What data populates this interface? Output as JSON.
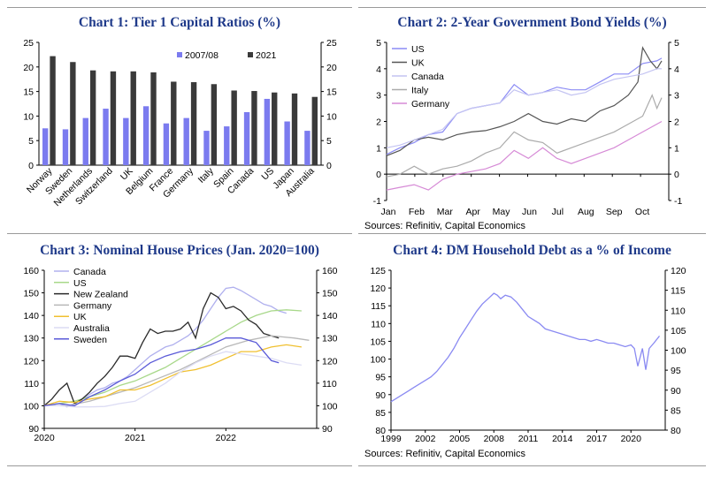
{
  "chart_data": [
    {
      "type": "bar",
      "title": "Chart 1: Tier 1 Capital Ratios (%)",
      "categories": [
        "Norway",
        "Sweden",
        "Netherlands",
        "Switzerland",
        "UK",
        "Belgium",
        "France",
        "Germany",
        "Italy",
        "Spain",
        "Canada",
        "US",
        "Japan",
        "Australia"
      ],
      "series": [
        {
          "name": "2007/08",
          "color": "#7b7bef",
          "values": [
            7.5,
            7.3,
            9.6,
            11.5,
            9.6,
            12.0,
            8.5,
            9.6,
            7.0,
            7.9,
            10.8,
            13.5,
            8.9,
            7.0
          ]
        },
        {
          "name": "2021",
          "color": "#3a3a3a",
          "values": [
            22.2,
            21.0,
            19.3,
            19.1,
            19.1,
            18.9,
            17.0,
            16.9,
            16.5,
            15.2,
            15.1,
            14.8,
            14.6,
            13.9
          ]
        }
      ],
      "ylim": [
        0,
        25
      ],
      "yticks": [
        0,
        5,
        10,
        15,
        20,
        25
      ],
      "legend_position": "top-right",
      "grid": false
    },
    {
      "type": "line",
      "title": "Chart 2: 2-Year Government Bond Yields (%)",
      "x_months": [
        "Jan",
        "Feb",
        "Mar",
        "Apr",
        "May",
        "Jun",
        "Jul",
        "Aug",
        "Sep",
        "Oct"
      ],
      "ylim": [
        -1,
        5
      ],
      "yticks": [
        -1,
        0,
        1,
        2,
        3,
        4,
        5
      ],
      "source": "Sources: Refinitiv, Capital Economics",
      "legend_position": "top-left",
      "series": [
        {
          "name": "US",
          "color": "#8c8cf5",
          "x": [
            1,
            15,
            30,
            45,
            60,
            75,
            90,
            105,
            120,
            135,
            150,
            165,
            180,
            195,
            210,
            225,
            240,
            255,
            270,
            285,
            290
          ],
          "y": [
            0.75,
            1.0,
            1.2,
            1.5,
            1.6,
            2.3,
            2.5,
            2.6,
            2.7,
            3.4,
            3.0,
            3.1,
            3.3,
            3.2,
            3.2,
            3.5,
            3.8,
            3.8,
            4.2,
            4.3,
            4.4
          ]
        },
        {
          "name": "UK",
          "color": "#555555",
          "x": [
            1,
            15,
            30,
            45,
            60,
            75,
            90,
            105,
            120,
            135,
            150,
            165,
            180,
            195,
            210,
            225,
            240,
            255,
            265,
            270,
            278,
            285,
            290
          ],
          "y": [
            0.7,
            0.9,
            1.3,
            1.4,
            1.3,
            1.5,
            1.6,
            1.65,
            1.8,
            2.0,
            2.3,
            2.0,
            1.9,
            2.1,
            2.0,
            2.4,
            2.6,
            3.0,
            3.5,
            4.8,
            4.3,
            4.0,
            4.3
          ]
        },
        {
          "name": "Canada",
          "color": "#c4c4f2",
          "x": [
            1,
            15,
            30,
            45,
            60,
            75,
            90,
            105,
            120,
            135,
            150,
            165,
            180,
            195,
            210,
            225,
            240,
            255,
            270,
            285,
            290
          ],
          "y": [
            1.0,
            1.1,
            1.3,
            1.5,
            1.7,
            2.3,
            2.5,
            2.6,
            2.7,
            3.2,
            3.0,
            3.1,
            3.2,
            3.0,
            3.1,
            3.4,
            3.6,
            3.7,
            3.8,
            4.0,
            4.0
          ]
        },
        {
          "name": "Italy",
          "color": "#ababab",
          "x": [
            1,
            15,
            30,
            45,
            60,
            75,
            90,
            105,
            120,
            135,
            150,
            165,
            180,
            195,
            210,
            225,
            240,
            255,
            270,
            280,
            285,
            290
          ],
          "y": [
            -0.1,
            0.0,
            0.3,
            0.0,
            0.2,
            0.3,
            0.5,
            0.8,
            1.0,
            1.6,
            1.3,
            1.2,
            0.8,
            1.0,
            1.2,
            1.4,
            1.6,
            1.9,
            2.2,
            3.0,
            2.5,
            2.9
          ]
        },
        {
          "name": "Germany",
          "color": "#d68ad6",
          "x": [
            1,
            15,
            30,
            45,
            60,
            75,
            90,
            105,
            120,
            135,
            150,
            165,
            180,
            195,
            210,
            225,
            240,
            255,
            270,
            285,
            290
          ],
          "y": [
            -0.6,
            -0.5,
            -0.4,
            -0.6,
            -0.2,
            0.0,
            0.1,
            0.2,
            0.4,
            0.9,
            0.6,
            1.0,
            0.6,
            0.4,
            0.6,
            0.8,
            1.0,
            1.3,
            1.6,
            1.9,
            2.0
          ]
        }
      ]
    },
    {
      "type": "line",
      "title": "Chart 3: Nominal House Prices (Jan. 2020=100)",
      "x_years": [
        "2020",
        "2021",
        "2022"
      ],
      "ylim": [
        90,
        160
      ],
      "yticks": [
        90,
        100,
        110,
        120,
        130,
        140,
        150,
        160
      ],
      "legend_position": "top-left",
      "series": [
        {
          "name": "Canada",
          "color": "#b0b0ee",
          "x": [
            0,
            1,
            2,
            3,
            4,
            5,
            6,
            7,
            8,
            9,
            10,
            11,
            12,
            13,
            14,
            15,
            16,
            17,
            18,
            19,
            20,
            21,
            22,
            23,
            24,
            25,
            26,
            27,
            28,
            29,
            30,
            31,
            32
          ],
          "y": [
            100,
            100.5,
            101,
            99.5,
            101,
            103,
            105,
            107,
            108,
            110,
            111,
            113,
            116,
            119,
            122,
            124,
            126,
            127,
            129,
            131,
            134,
            138,
            143,
            148,
            152,
            152.5,
            151,
            149,
            147,
            145,
            144,
            142,
            141
          ]
        },
        {
          "name": "US",
          "color": "#a8d88a",
          "x": [
            0,
            2,
            4,
            6,
            8,
            10,
            12,
            14,
            16,
            18,
            20,
            22,
            24,
            26,
            28,
            30,
            32,
            34
          ],
          "y": [
            100,
            101,
            102,
            104,
            106,
            109,
            111,
            114,
            117,
            121,
            125,
            129,
            133,
            137,
            140,
            142,
            142.5,
            142
          ]
        },
        {
          "name": "New Zealand",
          "color": "#2a2a2a",
          "x": [
            0,
            1,
            2,
            3,
            4,
            5,
            6,
            7,
            8,
            9,
            10,
            11,
            12,
            13,
            14,
            15,
            16,
            17,
            18,
            19,
            20,
            21,
            22,
            23,
            24,
            25,
            26,
            27,
            28,
            29,
            30,
            31
          ],
          "y": [
            100,
            103,
            107,
            110,
            101,
            103,
            106,
            110,
            113,
            117,
            122,
            122,
            121,
            128,
            134,
            132,
            133,
            133,
            134,
            137,
            130,
            143,
            150,
            148,
            143,
            144,
            142,
            138,
            136,
            132,
            131,
            130
          ]
        },
        {
          "name": "Germany",
          "color": "#b8b8b8",
          "x": [
            0,
            3,
            6,
            9,
            12,
            15,
            18,
            21,
            24,
            27,
            30,
            33,
            35
          ],
          "y": [
            100,
            100,
            102,
            105,
            108,
            112,
            116,
            121,
            126,
            129,
            131,
            130,
            129
          ]
        },
        {
          "name": "UK",
          "color": "#f0c030",
          "x": [
            0,
            2,
            4,
            6,
            8,
            10,
            12,
            14,
            16,
            18,
            20,
            22,
            24,
            26,
            28,
            30,
            32,
            34
          ],
          "y": [
            100,
            102,
            101.5,
            103,
            104,
            107,
            107,
            109,
            112,
            115,
            116,
            118,
            121,
            124,
            124,
            126,
            127,
            126
          ]
        },
        {
          "name": "Australia",
          "color": "#dcdcf4",
          "x": [
            0,
            2,
            4,
            6,
            8,
            10,
            12,
            14,
            16,
            18,
            20,
            22,
            24,
            26,
            28,
            30,
            32,
            34
          ],
          "y": [
            100,
            100,
            99.5,
            99.5,
            99.7,
            101,
            102,
            106,
            110,
            115,
            119,
            122,
            124,
            123,
            122,
            121,
            119,
            118
          ]
        },
        {
          "name": "Sweden",
          "color": "#5a5ad8",
          "x": [
            0,
            2,
            4,
            6,
            8,
            10,
            12,
            14,
            16,
            18,
            20,
            22,
            24,
            26,
            28,
            29,
            30,
            31
          ],
          "y": [
            100,
            101,
            100,
            104,
            107,
            111,
            114,
            119,
            122,
            124,
            125,
            127,
            130,
            130,
            128,
            124,
            120,
            119
          ]
        }
      ]
    },
    {
      "type": "line",
      "title": "Chart 4: DM Household Debt as a % of Income",
      "x_ticks": [
        "1999",
        "2002",
        "2005",
        "2008",
        "2011",
        "2014",
        "2017",
        "2020"
      ],
      "ylim_left": [
        80,
        125
      ],
      "yticks_left": [
        80,
        85,
        90,
        95,
        100,
        105,
        110,
        115,
        120,
        125
      ],
      "ylim_right": [
        80,
        120
      ],
      "yticks_right": [
        80,
        85,
        90,
        95,
        100,
        105,
        110,
        115,
        120
      ],
      "source": "Sources: Refinitiv, Capital Economics",
      "series": [
        {
          "name": "",
          "color": "#8a8af2",
          "x": [
            1999,
            1999.5,
            2000,
            2000.5,
            2001,
            2001.5,
            2002,
            2002.5,
            2003,
            2003.5,
            2004,
            2004.5,
            2005,
            2005.5,
            2006,
            2006.5,
            2007,
            2007.5,
            2008,
            2008.3,
            2008.6,
            2009,
            2009.5,
            2010,
            2010.5,
            2011,
            2011.5,
            2012,
            2012.5,
            2013,
            2013.5,
            2014,
            2014.5,
            2015,
            2015.5,
            2016,
            2016.5,
            2017,
            2017.5,
            2018,
            2018.5,
            2019,
            2019.5,
            2020,
            2020.3,
            2020.6,
            2021,
            2021.3,
            2021.6,
            2022,
            2022.5
          ],
          "y": [
            88,
            89,
            90,
            91,
            92,
            93,
            94,
            95,
            96.5,
            98.5,
            100.5,
            103,
            106,
            108.5,
            111,
            113.5,
            115.5,
            117,
            118.5,
            118,
            117,
            118,
            117.5,
            116,
            114,
            112,
            111,
            110,
            108.5,
            108,
            107.5,
            107,
            106.5,
            106,
            105.5,
            105.5,
            105,
            105.5,
            105,
            104.5,
            104.5,
            104,
            103.5,
            104,
            103,
            98,
            103,
            97,
            103,
            104.5,
            106.5
          ]
        }
      ]
    }
  ]
}
